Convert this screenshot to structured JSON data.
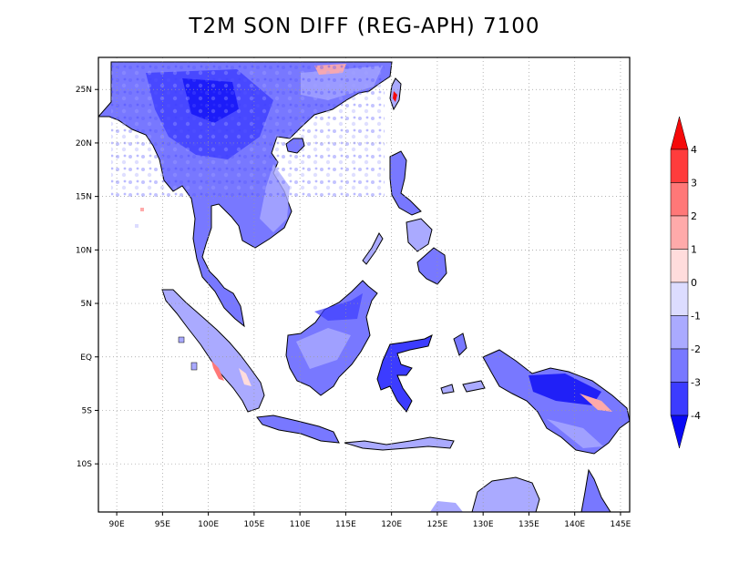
{
  "title": "T2M SON DIFF (REG-APH) 7100",
  "map": {
    "lon_range": [
      88,
      146
    ],
    "lat_range": [
      -14.5,
      28
    ],
    "lon_ticks": [
      {
        "value": 90,
        "label": "90E"
      },
      {
        "value": 95,
        "label": "95E"
      },
      {
        "value": 100,
        "label": "100E"
      },
      {
        "value": 105,
        "label": "105E"
      },
      {
        "value": 110,
        "label": "110E"
      },
      {
        "value": 115,
        "label": "115E"
      },
      {
        "value": 120,
        "label": "120E"
      },
      {
        "value": 125,
        "label": "125E"
      },
      {
        "value": 130,
        "label": "130E"
      },
      {
        "value": 135,
        "label": "135E"
      },
      {
        "value": 140,
        "label": "140E"
      },
      {
        "value": 145,
        "label": "145E"
      }
    ],
    "lat_ticks": [
      {
        "value": 25,
        "label": "25N"
      },
      {
        "value": 20,
        "label": "20N"
      },
      {
        "value": 15,
        "label": "15N"
      },
      {
        "value": 10,
        "label": "10N"
      },
      {
        "value": 5,
        "label": "5N"
      },
      {
        "value": 0,
        "label": "EQ"
      },
      {
        "value": -5,
        "label": "5S"
      },
      {
        "value": -10,
        "label": "10S"
      }
    ],
    "grid": "dotted"
  },
  "colorbar": {
    "labels": [
      "4",
      "3",
      "2",
      "1",
      "0",
      "-1",
      "-2",
      "-3",
      "-4"
    ],
    "colors": [
      "#f50a0a",
      "#ff3c3c",
      "#ff7878",
      "#ffaaaa",
      "#ffdcdc",
      "#dcdcff",
      "#aaaaff",
      "#7878ff",
      "#3c3cff",
      "#0a0af5"
    ],
    "extend": "both"
  }
}
